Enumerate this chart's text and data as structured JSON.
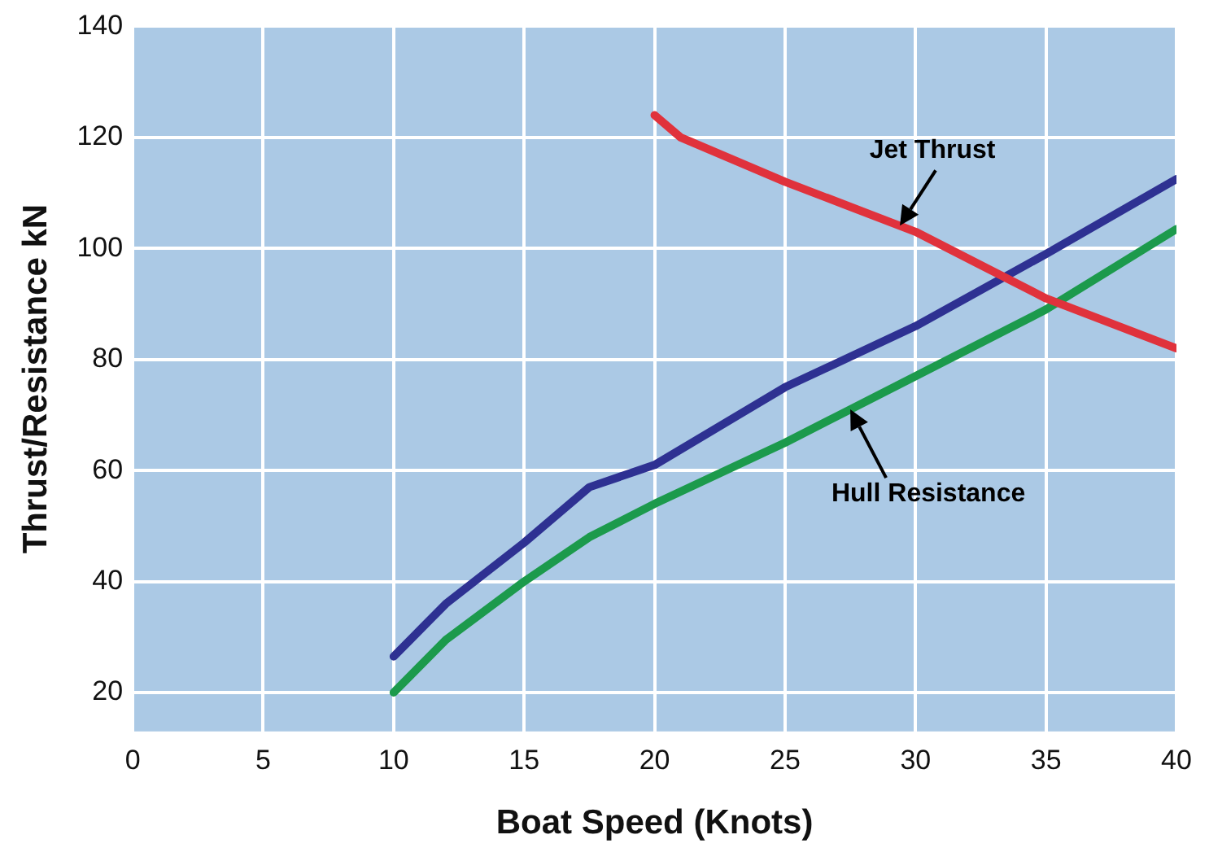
{
  "chart_data": {
    "type": "line",
    "xlabel": "Boat Speed (Knots)",
    "ylabel": "Thrust/Resistance kN",
    "xlim": [
      0,
      40
    ],
    "xticks": [
      0,
      5,
      10,
      15,
      20,
      25,
      30,
      35,
      40
    ],
    "ylim": [
      13,
      140
    ],
    "yticks": [
      20,
      40,
      60,
      80,
      100,
      120,
      140
    ],
    "grid": true,
    "legend": false,
    "marker": "none",
    "line_style": "solid",
    "series": [
      {
        "color": "#e0323c",
        "x": [
          20,
          21,
          25,
          30,
          32.5,
          35,
          40
        ],
        "values": [
          124,
          120,
          112,
          103,
          97,
          91,
          82
        ]
      },
      {
        "color": "#2e3192",
        "x": [
          10,
          12,
          15,
          17.5,
          20,
          25,
          30,
          35,
          40
        ],
        "values": [
          26.5,
          36,
          47,
          57,
          61,
          75,
          86,
          99,
          112.5
        ]
      },
      {
        "color": "#1c9a4c",
        "x": [
          10,
          12,
          15,
          17.5,
          20,
          25,
          30,
          35,
          40
        ],
        "values": [
          20,
          29.5,
          40,
          48,
          54,
          65,
          77,
          89,
          103.5
        ]
      }
    ],
    "annotations": [
      {
        "text": "Jet Thrust",
        "x": 29.4,
        "y": 104.1
      },
      {
        "text": "Hull Resistance",
        "x": 27.5,
        "y": 71
      }
    ]
  }
}
